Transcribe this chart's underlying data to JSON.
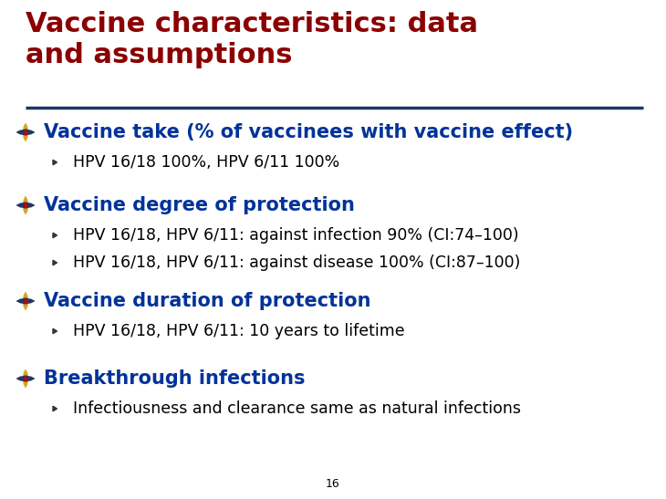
{
  "title_line1": "Vaccine characteristics: data",
  "title_line2": "and assumptions",
  "title_color": "#8B0000",
  "title_fontsize": 22,
  "separator_color": "#1F3864",
  "background_color": "#FFFFFF",
  "sections": [
    {
      "heading": "Vaccine take (% of vaccinees with vaccine effect)",
      "heading_color": "#003399",
      "heading_fontsize": 15,
      "bullets": [
        "HPV 16/18 100%, HPV 6/11 100%"
      ],
      "bullet_color": "#000000",
      "bullet_fontsize": 12.5
    },
    {
      "heading": "Vaccine degree of protection",
      "heading_color": "#003399",
      "heading_fontsize": 15,
      "bullets": [
        "HPV 16/18, HPV 6/11: against infection 90% (CI:74–100)",
        "HPV 16/18, HPV 6/11: against disease 100% (CI:87–100)"
      ],
      "bullet_color": "#000000",
      "bullet_fontsize": 12.5
    },
    {
      "heading": "Vaccine duration of protection",
      "heading_color": "#003399",
      "heading_fontsize": 15,
      "bullets": [
        "HPV 16/18, HPV 6/11: 10 years to lifetime"
      ],
      "bullet_color": "#000000",
      "bullet_fontsize": 12.5
    },
    {
      "heading": "Breakthrough infections",
      "heading_color": "#003399",
      "heading_fontsize": 15,
      "bullets": [
        "Infectiousness and clearance same as natural infections"
      ],
      "bullet_color": "#000000",
      "bullet_fontsize": 12.5
    }
  ],
  "page_number": "16",
  "page_number_fontsize": 9,
  "page_number_color": "#000000",
  "icon_gold": "#DAA520",
  "icon_blue": "#1F3864",
  "bullet_arrow_color": "#444444"
}
